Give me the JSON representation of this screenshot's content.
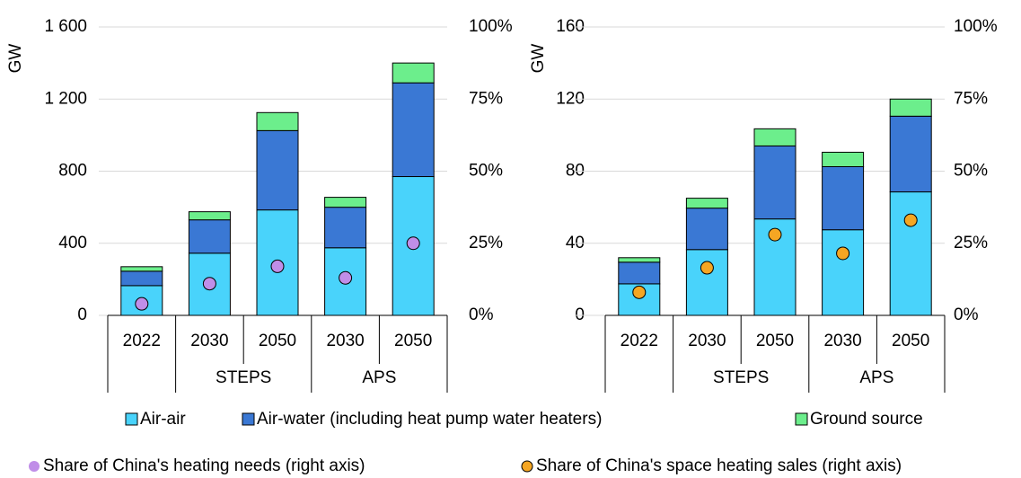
{
  "chart_data": [
    {
      "type": "bar",
      "stacked": true,
      "y_label": "GW",
      "grid": true,
      "categories": [
        "2022",
        "2030",
        "2050",
        "2030",
        "2050"
      ],
      "category_groups": [
        null,
        "STEPS",
        "STEPS",
        "APS",
        "APS"
      ],
      "ylim": [
        0,
        1600
      ],
      "yticks": [
        0,
        400,
        800,
        {
          "value": 1200,
          "label": "1 200"
        },
        {
          "value": 1600,
          "label": "1 600"
        }
      ],
      "y2lim": [
        0,
        100
      ],
      "y2ticks": [
        {
          "value": 0,
          "label": "0%"
        },
        {
          "value": 25,
          "label": "25%"
        },
        {
          "value": 50,
          "label": "50%"
        },
        {
          "value": 75,
          "label": "75%"
        },
        {
          "value": 100,
          "label": "100%"
        }
      ],
      "series": [
        {
          "name": "Air-air",
          "color": "#49d3fb",
          "values": [
            165,
            345,
            585,
            375,
            770
          ]
        },
        {
          "name": "Air-water (including heat pump water heaters)",
          "color": "#3a78d4",
          "values": [
            80,
            185,
            440,
            225,
            520
          ]
        },
        {
          "name": "Ground source",
          "color": "#6cee8c",
          "values": [
            25,
            45,
            100,
            55,
            110
          ]
        },
        {
          "name": "Share of China's heating needs (right axis)",
          "color": "#c08ee8",
          "type": "scatter",
          "axis": "y2",
          "values": [
            4,
            11,
            17,
            13,
            25
          ]
        }
      ]
    },
    {
      "type": "bar",
      "stacked": true,
      "y_label": "GW",
      "grid": true,
      "categories": [
        "2022",
        "2030",
        "2050",
        "2030",
        "2050"
      ],
      "category_groups": [
        null,
        "STEPS",
        "STEPS",
        "APS",
        "APS"
      ],
      "ylim": [
        0,
        160
      ],
      "yticks": [
        0,
        40,
        80,
        120,
        160
      ],
      "y2lim": [
        0,
        100
      ],
      "y2ticks": [
        {
          "value": 0,
          "label": "0%"
        },
        {
          "value": 25,
          "label": "25%"
        },
        {
          "value": 50,
          "label": "50%"
        },
        {
          "value": 75,
          "label": "75%"
        },
        {
          "value": 100,
          "label": "100%"
        }
      ],
      "series": [
        {
          "name": "Air-air",
          "color": "#49d3fb",
          "values": [
            17.5,
            36.5,
            53.5,
            47.5,
            68.5
          ]
        },
        {
          "name": "Air-water (including heat pump water heaters)",
          "color": "#3a78d4",
          "values": [
            12,
            23,
            40.5,
            35,
            42
          ]
        },
        {
          "name": "Ground source",
          "color": "#6cee8c",
          "values": [
            2.5,
            5.5,
            9.5,
            8,
            9.5
          ]
        },
        {
          "name": "Share of China's space heating sales (right axis)",
          "color": "#f5a623",
          "type": "scatter",
          "axis": "y2",
          "values": [
            8,
            16.5,
            28,
            21.5,
            33
          ]
        }
      ]
    }
  ]
}
